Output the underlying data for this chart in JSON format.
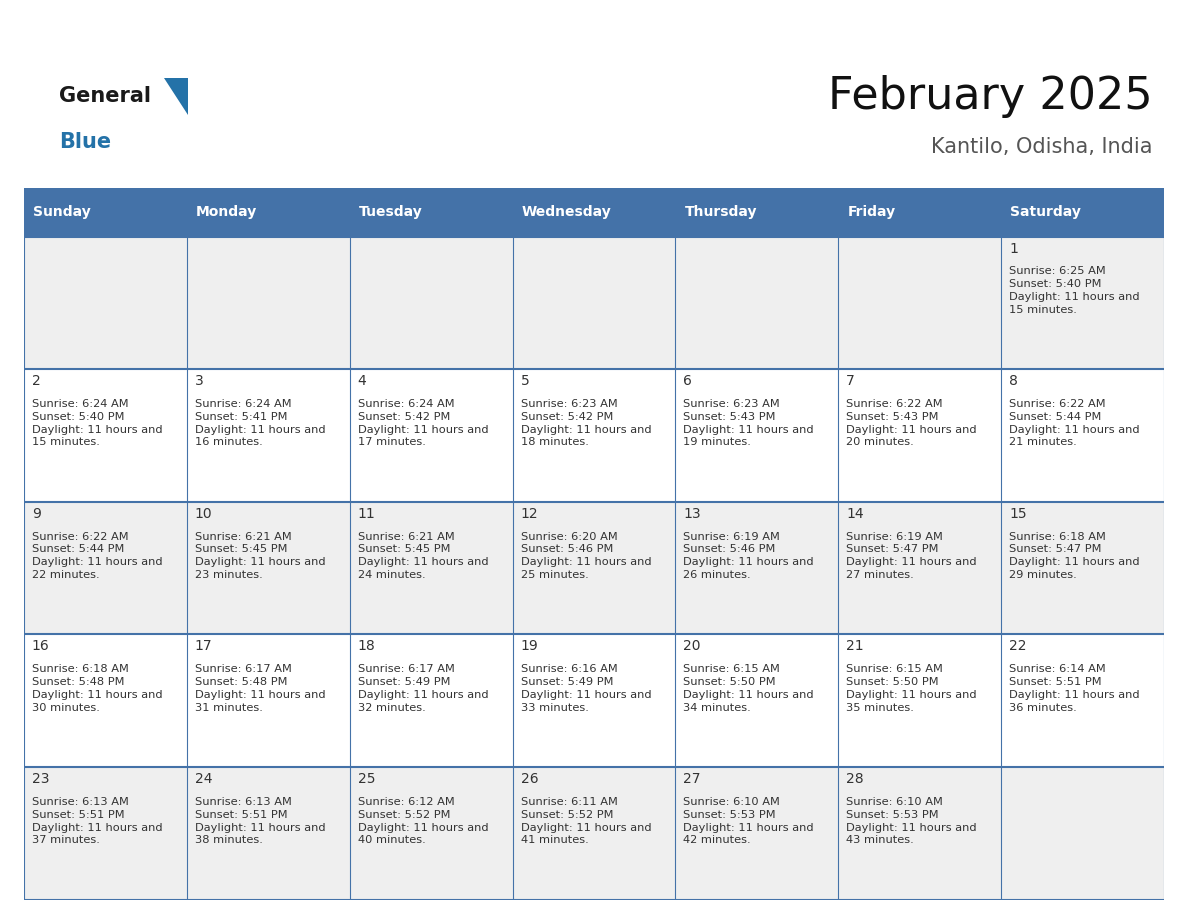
{
  "title": "February 2025",
  "subtitle": "Kantilo, Odisha, India",
  "header_bg": "#4472A8",
  "header_text": "#FFFFFF",
  "day_names": [
    "Sunday",
    "Monday",
    "Tuesday",
    "Wednesday",
    "Thursday",
    "Friday",
    "Saturday"
  ],
  "row_bg_1": "#EFEFEF",
  "row_bg_2": "#FFFFFF",
  "cell_border_color": "#4472A8",
  "day_num_color": "#333333",
  "info_text_color": "#333333",
  "logo_general_color": "#1a1a1a",
  "logo_blue_color": "#2472A8",
  "calendar": [
    [
      null,
      null,
      null,
      null,
      null,
      null,
      {
        "day": 1,
        "sunrise": "6:25 AM",
        "sunset": "5:40 PM",
        "daylight": "11 hours and 15 minutes."
      }
    ],
    [
      {
        "day": 2,
        "sunrise": "6:24 AM",
        "sunset": "5:40 PM",
        "daylight": "11 hours and 15 minutes."
      },
      {
        "day": 3,
        "sunrise": "6:24 AM",
        "sunset": "5:41 PM",
        "daylight": "11 hours and 16 minutes."
      },
      {
        "day": 4,
        "sunrise": "6:24 AM",
        "sunset": "5:42 PM",
        "daylight": "11 hours and 17 minutes."
      },
      {
        "day": 5,
        "sunrise": "6:23 AM",
        "sunset": "5:42 PM",
        "daylight": "11 hours and 18 minutes."
      },
      {
        "day": 6,
        "sunrise": "6:23 AM",
        "sunset": "5:43 PM",
        "daylight": "11 hours and 19 minutes."
      },
      {
        "day": 7,
        "sunrise": "6:22 AM",
        "sunset": "5:43 PM",
        "daylight": "11 hours and 20 minutes."
      },
      {
        "day": 8,
        "sunrise": "6:22 AM",
        "sunset": "5:44 PM",
        "daylight": "11 hours and 21 minutes."
      }
    ],
    [
      {
        "day": 9,
        "sunrise": "6:22 AM",
        "sunset": "5:44 PM",
        "daylight": "11 hours and 22 minutes."
      },
      {
        "day": 10,
        "sunrise": "6:21 AM",
        "sunset": "5:45 PM",
        "daylight": "11 hours and 23 minutes."
      },
      {
        "day": 11,
        "sunrise": "6:21 AM",
        "sunset": "5:45 PM",
        "daylight": "11 hours and 24 minutes."
      },
      {
        "day": 12,
        "sunrise": "6:20 AM",
        "sunset": "5:46 PM",
        "daylight": "11 hours and 25 minutes."
      },
      {
        "day": 13,
        "sunrise": "6:19 AM",
        "sunset": "5:46 PM",
        "daylight": "11 hours and 26 minutes."
      },
      {
        "day": 14,
        "sunrise": "6:19 AM",
        "sunset": "5:47 PM",
        "daylight": "11 hours and 27 minutes."
      },
      {
        "day": 15,
        "sunrise": "6:18 AM",
        "sunset": "5:47 PM",
        "daylight": "11 hours and 29 minutes."
      }
    ],
    [
      {
        "day": 16,
        "sunrise": "6:18 AM",
        "sunset": "5:48 PM",
        "daylight": "11 hours and 30 minutes."
      },
      {
        "day": 17,
        "sunrise": "6:17 AM",
        "sunset": "5:48 PM",
        "daylight": "11 hours and 31 minutes."
      },
      {
        "day": 18,
        "sunrise": "6:17 AM",
        "sunset": "5:49 PM",
        "daylight": "11 hours and 32 minutes."
      },
      {
        "day": 19,
        "sunrise": "6:16 AM",
        "sunset": "5:49 PM",
        "daylight": "11 hours and 33 minutes."
      },
      {
        "day": 20,
        "sunrise": "6:15 AM",
        "sunset": "5:50 PM",
        "daylight": "11 hours and 34 minutes."
      },
      {
        "day": 21,
        "sunrise": "6:15 AM",
        "sunset": "5:50 PM",
        "daylight": "11 hours and 35 minutes."
      },
      {
        "day": 22,
        "sunrise": "6:14 AM",
        "sunset": "5:51 PM",
        "daylight": "11 hours and 36 minutes."
      }
    ],
    [
      {
        "day": 23,
        "sunrise": "6:13 AM",
        "sunset": "5:51 PM",
        "daylight": "11 hours and 37 minutes."
      },
      {
        "day": 24,
        "sunrise": "6:13 AM",
        "sunset": "5:51 PM",
        "daylight": "11 hours and 38 minutes."
      },
      {
        "day": 25,
        "sunrise": "6:12 AM",
        "sunset": "5:52 PM",
        "daylight": "11 hours and 40 minutes."
      },
      {
        "day": 26,
        "sunrise": "6:11 AM",
        "sunset": "5:52 PM",
        "daylight": "11 hours and 41 minutes."
      },
      {
        "day": 27,
        "sunrise": "6:10 AM",
        "sunset": "5:53 PM",
        "daylight": "11 hours and 42 minutes."
      },
      {
        "day": 28,
        "sunrise": "6:10 AM",
        "sunset": "5:53 PM",
        "daylight": "11 hours and 43 minutes."
      },
      null
    ]
  ]
}
